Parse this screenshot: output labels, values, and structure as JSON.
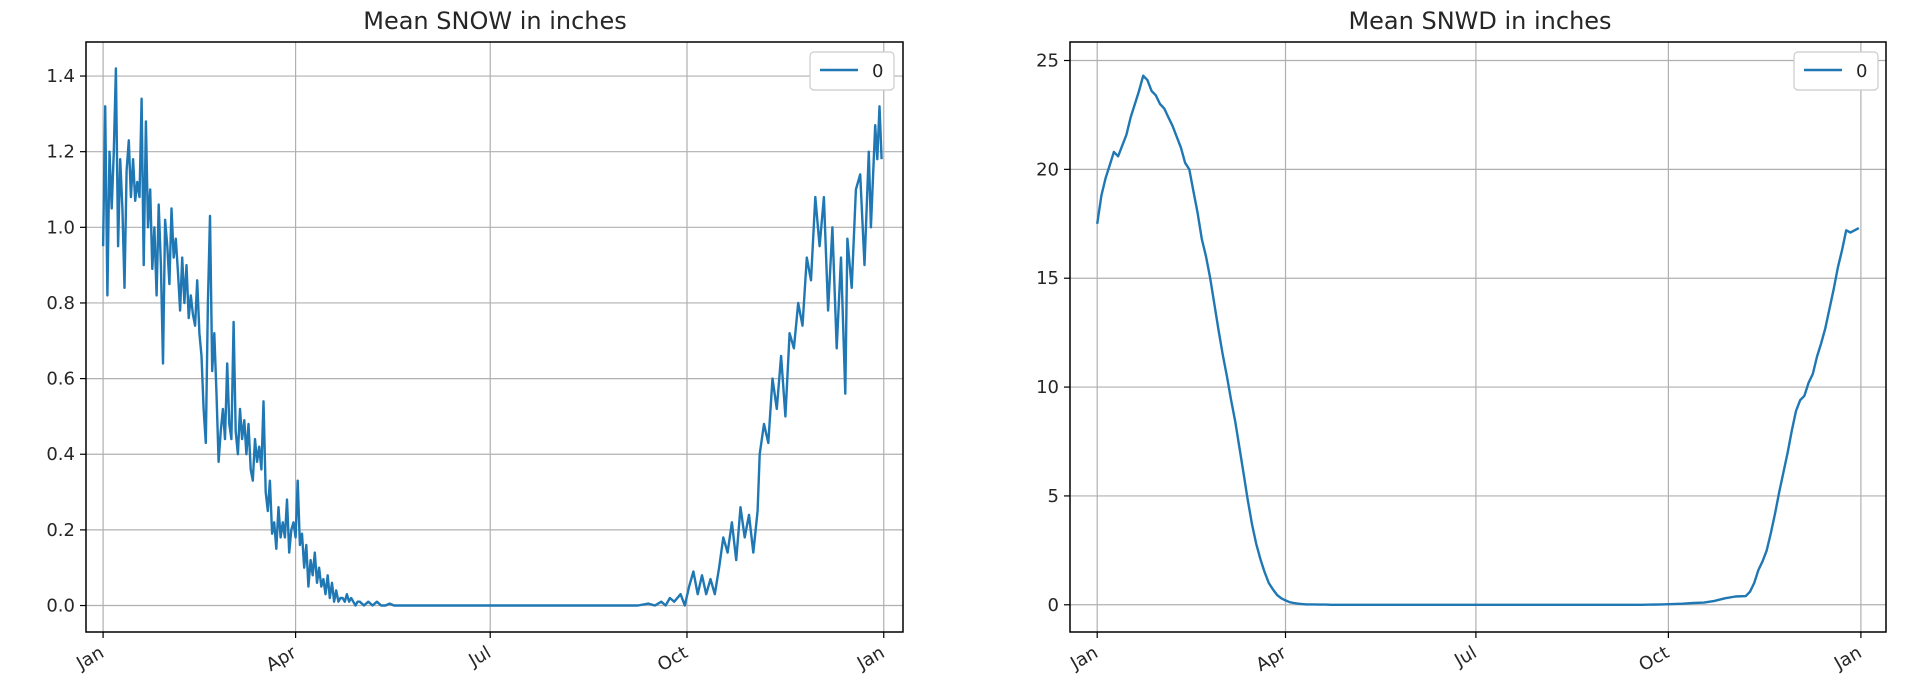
{
  "colors": {
    "series": "#1f77b4",
    "grid": "#b0b0b0",
    "axis": "#000000"
  },
  "chart_data": [
    {
      "type": "line",
      "title": "Mean  SNOW in inches",
      "xlabel": "",
      "ylabel": "",
      "xlim_day": [
        -8,
        374
      ],
      "ylim": [
        -0.07,
        1.49
      ],
      "yticks": [
        0.0,
        0.2,
        0.4,
        0.6,
        0.8,
        1.0,
        1.2,
        1.4
      ],
      "ytick_labels": [
        "0.0",
        "0.2",
        "0.4",
        "0.6",
        "0.8",
        "1.0",
        "1.2",
        "1.4"
      ],
      "xtick_days": [
        0,
        90,
        181,
        273,
        365
      ],
      "xtick_labels": [
        "Jan",
        "Apr",
        "Jul",
        "Oct",
        "Jan"
      ],
      "grid": true,
      "legend": {
        "position": "top-right",
        "entries": [
          "0"
        ]
      },
      "series": [
        {
          "name": "0",
          "x_day": [
            0,
            1,
            2,
            3,
            4,
            5,
            6,
            7,
            8,
            9,
            10,
            11,
            12,
            13,
            14,
            15,
            16,
            17,
            18,
            19,
            20,
            21,
            22,
            23,
            24,
            25,
            26,
            27,
            28,
            29,
            30,
            31,
            32,
            33,
            34,
            35,
            36,
            37,
            38,
            39,
            40,
            41,
            42,
            43,
            44,
            45,
            46,
            47,
            48,
            49,
            50,
            51,
            52,
            53,
            54,
            55,
            56,
            57,
            58,
            59,
            60,
            61,
            62,
            63,
            64,
            65,
            66,
            67,
            68,
            69,
            70,
            71,
            72,
            73,
            74,
            75,
            76,
            77,
            78,
            79,
            80,
            81,
            82,
            83,
            84,
            85,
            86,
            87,
            88,
            89,
            90,
            91,
            92,
            93,
            94,
            95,
            96,
            97,
            98,
            99,
            100,
            101,
            102,
            103,
            104,
            105,
            106,
            107,
            108,
            109,
            110,
            111,
            112,
            113,
            114,
            115,
            116,
            117,
            118,
            119,
            120,
            122,
            124,
            126,
            128,
            130,
            132,
            134,
            136,
            138,
            140,
            143,
            146,
            149,
            152,
            156,
            160,
            165,
            170,
            175,
            181,
            190,
            200,
            210,
            220,
            230,
            240,
            250,
            255,
            258,
            261,
            263,
            265,
            267,
            270,
            272,
            274,
            276,
            278,
            280,
            282,
            284,
            286,
            288,
            290,
            292,
            294,
            296,
            298,
            300,
            302,
            304,
            306,
            307,
            309,
            311,
            313,
            315,
            317,
            319,
            321,
            323,
            325,
            327,
            329,
            331,
            333,
            335,
            337,
            339,
            341,
            343,
            345,
            347,
            348,
            350,
            352,
            354,
            356,
            358,
            359,
            361,
            362,
            363,
            364
          ],
          "values": [
            0.95,
            1.32,
            0.82,
            1.2,
            1.05,
            1.2,
            1.42,
            0.95,
            1.18,
            1.05,
            0.84,
            1.15,
            1.23,
            1.08,
            1.18,
            1.07,
            1.12,
            1.08,
            1.34,
            0.9,
            1.28,
            1.0,
            1.1,
            0.89,
            1.0,
            0.82,
            1.06,
            0.9,
            0.64,
            1.02,
            0.95,
            0.85,
            1.05,
            0.92,
            0.97,
            0.88,
            0.78,
            0.92,
            0.8,
            0.9,
            0.76,
            0.82,
            0.77,
            0.74,
            0.86,
            0.72,
            0.66,
            0.52,
            0.43,
            0.8,
            1.03,
            0.62,
            0.72,
            0.56,
            0.38,
            0.46,
            0.52,
            0.44,
            0.64,
            0.48,
            0.44,
            0.75,
            0.46,
            0.4,
            0.52,
            0.44,
            0.49,
            0.4,
            0.48,
            0.36,
            0.33,
            0.44,
            0.38,
            0.42,
            0.36,
            0.54,
            0.3,
            0.25,
            0.33,
            0.19,
            0.22,
            0.15,
            0.26,
            0.18,
            0.22,
            0.18,
            0.28,
            0.14,
            0.2,
            0.22,
            0.18,
            0.33,
            0.16,
            0.19,
            0.1,
            0.16,
            0.05,
            0.12,
            0.08,
            0.14,
            0.06,
            0.1,
            0.05,
            0.07,
            0.03,
            0.08,
            0.02,
            0.06,
            0.01,
            0.04,
            0.01,
            0.02,
            0.02,
            0.01,
            0.03,
            0.01,
            0.02,
            0.01,
            0.0,
            0.01,
            0.01,
            0.0,
            0.01,
            0.0,
            0.01,
            0.0,
            0.0,
            0.005,
            0.0,
            0.0,
            0.0,
            0.0,
            0.0,
            0.0,
            0.0,
            0.0,
            0.0,
            0.0,
            0.0,
            0.0,
            0.0,
            0.0,
            0.0,
            0.0,
            0.0,
            0.0,
            0.0,
            0.0,
            0.005,
            0.0,
            0.01,
            0.0,
            0.02,
            0.01,
            0.03,
            0.0,
            0.05,
            0.09,
            0.03,
            0.08,
            0.03,
            0.07,
            0.03,
            0.1,
            0.18,
            0.14,
            0.22,
            0.12,
            0.26,
            0.18,
            0.24,
            0.14,
            0.25,
            0.4,
            0.48,
            0.43,
            0.6,
            0.52,
            0.66,
            0.5,
            0.72,
            0.68,
            0.8,
            0.74,
            0.92,
            0.86,
            1.08,
            0.95,
            1.08,
            0.78,
            1.0,
            0.68,
            0.92,
            0.56,
            0.97,
            0.84,
            1.1,
            1.14,
            0.9,
            1.2,
            1.0,
            1.27,
            1.18,
            1.32,
            1.18
          ]
        }
      ]
    },
    {
      "type": "line",
      "title": "Mean  SNWD in inches",
      "xlabel": "",
      "ylabel": "",
      "xlim_day": [
        -13,
        377
      ],
      "ylim": [
        -1.25,
        25.85
      ],
      "yticks": [
        0,
        5,
        10,
        15,
        20,
        25
      ],
      "ytick_labels": [
        "0",
        "5",
        "10",
        "15",
        "20",
        "25"
      ],
      "xtick_days": [
        0,
        90,
        181,
        273,
        365
      ],
      "xtick_labels": [
        "Jan",
        "Apr",
        "Jul",
        "Oct",
        "Jan"
      ],
      "grid": true,
      "legend": {
        "position": "top-right",
        "entries": [
          "0"
        ]
      },
      "series": [
        {
          "name": "0",
          "x_day": [
            0,
            2,
            4,
            6,
            8,
            10,
            12,
            14,
            16,
            18,
            20,
            22,
            24,
            26,
            28,
            30,
            32,
            34,
            36,
            38,
            40,
            42,
            44,
            46,
            48,
            50,
            52,
            54,
            56,
            58,
            60,
            62,
            64,
            66,
            68,
            70,
            72,
            74,
            76,
            78,
            80,
            82,
            84,
            86,
            88,
            90,
            92,
            94,
            96,
            98,
            100,
            103,
            106,
            109,
            112,
            116,
            120,
            130,
            140,
            150,
            160,
            170,
            180,
            190,
            200,
            210,
            220,
            230,
            240,
            250,
            260,
            270,
            280,
            285,
            290,
            295,
            300,
            305,
            310,
            312,
            314,
            316,
            318,
            320,
            322,
            324,
            326,
            328,
            330,
            332,
            334,
            336,
            338,
            340,
            342,
            344,
            346,
            348,
            350,
            352,
            354,
            356,
            358,
            360,
            362,
            364
          ],
          "values": [
            17.5,
            18.8,
            19.6,
            20.2,
            20.8,
            20.6,
            21.1,
            21.6,
            22.4,
            23.0,
            23.6,
            24.3,
            24.1,
            23.6,
            23.4,
            23.0,
            22.8,
            22.4,
            22.0,
            21.5,
            21.0,
            20.3,
            20.0,
            19.0,
            18.0,
            16.8,
            16.0,
            15.0,
            13.8,
            12.6,
            11.5,
            10.5,
            9.4,
            8.4,
            7.2,
            6.0,
            4.8,
            3.7,
            2.8,
            2.1,
            1.5,
            1.0,
            0.7,
            0.45,
            0.3,
            0.2,
            0.12,
            0.08,
            0.05,
            0.03,
            0.02,
            0.02,
            0.01,
            0.01,
            0.0,
            0.0,
            0.0,
            0.0,
            0.0,
            0.0,
            0.0,
            0.0,
            0.0,
            0.0,
            0.0,
            0.0,
            0.0,
            0.0,
            0.0,
            0.0,
            0.0,
            0.02,
            0.05,
            0.08,
            0.1,
            0.18,
            0.3,
            0.38,
            0.4,
            0.6,
            1.0,
            1.6,
            2.0,
            2.5,
            3.3,
            4.2,
            5.2,
            6.1,
            7.0,
            8.0,
            8.9,
            9.4,
            9.6,
            10.2,
            10.6,
            11.4,
            12.0,
            12.7,
            13.6,
            14.5,
            15.5,
            16.3,
            17.2,
            17.1,
            17.2,
            17.3
          ]
        }
      ]
    }
  ]
}
